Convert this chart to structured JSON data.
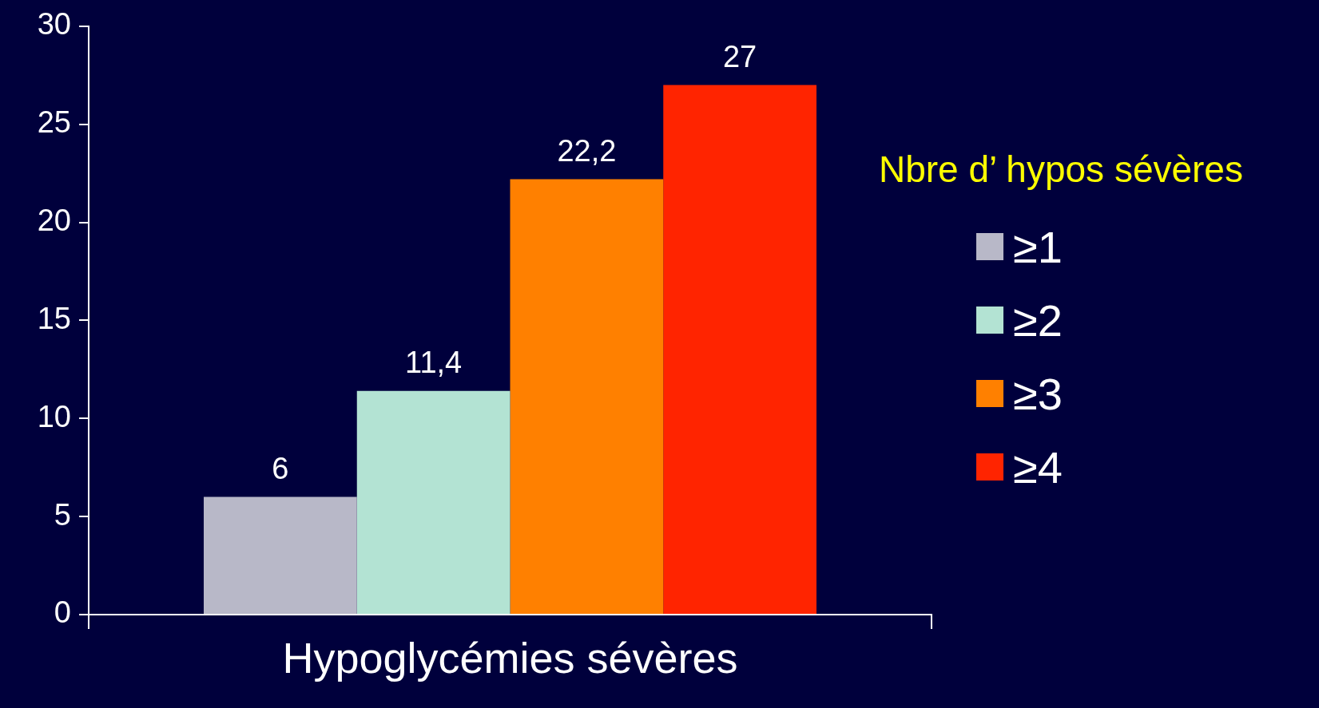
{
  "chart_data": {
    "type": "bar",
    "categories": [
      "Hypoglycémies sévères"
    ],
    "series": [
      {
        "name": "≥1",
        "color": "#b8b8c8",
        "values": [
          6
        ],
        "value_labels": [
          "6"
        ]
      },
      {
        "name": "≥2",
        "color": "#b3e3d3",
        "values": [
          11.4
        ],
        "value_labels": [
          "11,4"
        ]
      },
      {
        "name": "≥3",
        "color": "#ff8000",
        "values": [
          22.2
        ],
        "value_labels": [
          "22,2"
        ]
      },
      {
        "name": "≥4",
        "color": "#ff2400",
        "values": [
          27
        ],
        "value_labels": [
          "27"
        ]
      }
    ],
    "ylim": [
      0,
      30
    ],
    "yticks": [
      0,
      5,
      10,
      15,
      20,
      25,
      30
    ],
    "legend": "right",
    "legend_title": "Nbre d’ hypos sévères"
  }
}
